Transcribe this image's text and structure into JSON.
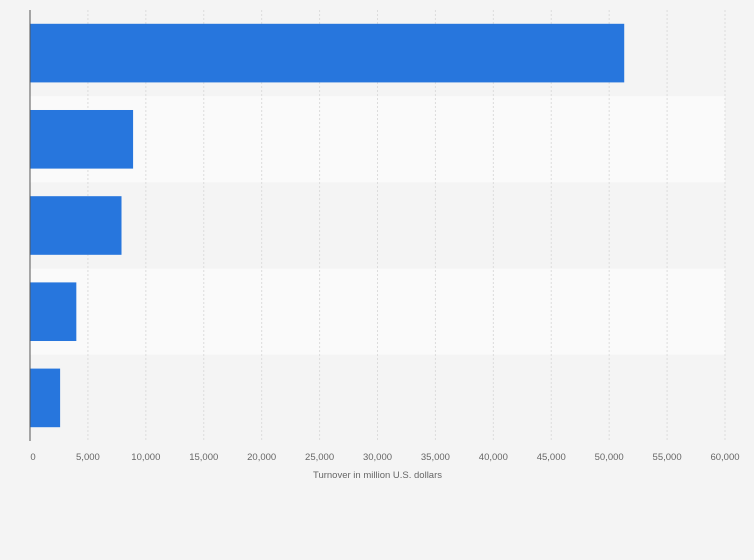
{
  "chart_data": {
    "type": "bar",
    "orientation": "horizontal",
    "categories": [
      "",
      "",
      "",
      "",
      ""
    ],
    "values": [
      51300,
      8900,
      7900,
      4000,
      2600
    ],
    "xlabel": "Turnover in million U.S. dollars",
    "ylabel": "",
    "xlim": [
      0,
      60000
    ],
    "x_ticks": [
      {
        "value": 0,
        "label": "0"
      },
      {
        "value": 5000,
        "label": "5,000"
      },
      {
        "value": 10000,
        "label": "10,000"
      },
      {
        "value": 15000,
        "label": "15,000"
      },
      {
        "value": 20000,
        "label": "20,000"
      },
      {
        "value": 25000,
        "label": "25,000"
      },
      {
        "value": 30000,
        "label": "30,000"
      },
      {
        "value": 35000,
        "label": "35,000"
      },
      {
        "value": 40000,
        "label": "40,000"
      },
      {
        "value": 45000,
        "label": "45,000"
      },
      {
        "value": 50000,
        "label": "50,000"
      },
      {
        "value": 55000,
        "label": "55,000"
      },
      {
        "value": 60000,
        "label": "60,000"
      }
    ],
    "grid": true,
    "colors": {
      "bar": "#2776dd",
      "band_light": "#fafafa",
      "band_dark": "#f4f4f4",
      "grid": "#dcdcdc",
      "axis": "#555555"
    }
  }
}
